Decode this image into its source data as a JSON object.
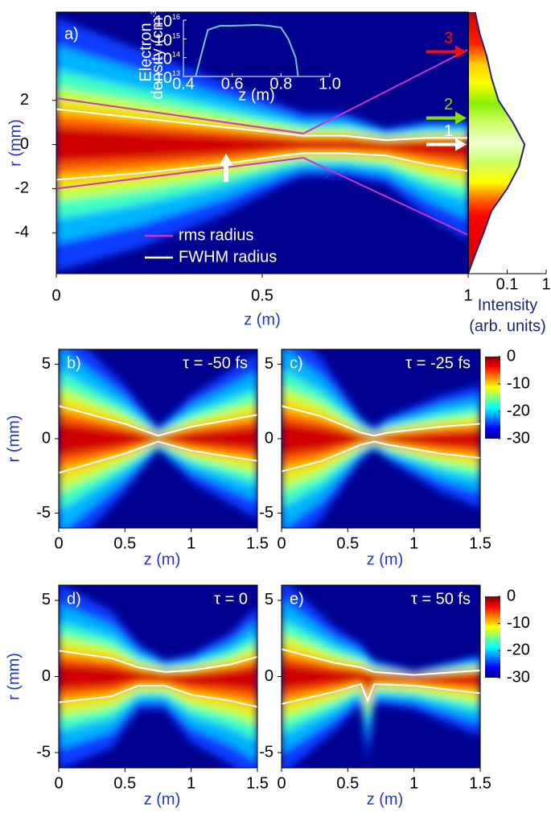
{
  "chart_data": [
    {
      "type": "heatmap",
      "panel_label": "a)",
      "xlabel": "z (m)",
      "ylabel": "r (mm)",
      "xlim": [
        0,
        1
      ],
      "ylim": [
        -5.85,
        6
      ],
      "xticks": [
        0,
        0.5,
        1
      ],
      "yticks": [
        2,
        0,
        -2,
        -4
      ],
      "series": [
        {
          "name": "rms radius",
          "color": "#cc33cc",
          "x": [
            0,
            0.6,
            1
          ],
          "values": [
            2.1,
            0.5,
            4.3
          ],
          "values_lower": [
            -2,
            -0.6,
            -4.1
          ]
        },
        {
          "name": "FWHM radius",
          "color": "#ffffff",
          "x": [
            0,
            0.2,
            0.4,
            0.55,
            0.6,
            0.7,
            0.8,
            0.9,
            1
          ],
          "values": [
            1.6,
            1.2,
            0.8,
            0.5,
            0.4,
            0.4,
            0.2,
            0.3,
            0.3
          ],
          "values_lower": [
            -1.6,
            -1.3,
            -0.9,
            -0.5,
            -0.4,
            -0.4,
            -0.5,
            -0.9,
            -1.2
          ]
        }
      ],
      "annotations": [
        {
          "text": "1",
          "color": "#ffffff",
          "r": 0
        },
        {
          "text": "2",
          "color": "#88dd00",
          "r": 1.2
        },
        {
          "text": "3",
          "color": "#ee1111",
          "r": 4.2
        }
      ]
    },
    {
      "type": "line",
      "ylog": true,
      "xlabel": "z (m)",
      "ylabel_lines": [
        "Electron",
        "density (cm"
      ],
      "ylabel_exponent": "-3",
      "ylabel_suffix": ")",
      "xlim": [
        0.4,
        1.0
      ],
      "xticks": [
        0.4,
        0.6,
        0.8,
        {
          "value": 1,
          "label": "1.0"
        }
      ],
      "ylim": [
        10000000000000.0,
        1e+16
      ],
      "yticks": [
        {
          "value": 1e+16,
          "label": "10",
          "exponent": "16"
        },
        {
          "value": 1000000000000000.0,
          "label": "10",
          "exponent": "15"
        },
        {
          "value": 100000000000000.0,
          "label": "10",
          "exponent": "14"
        },
        {
          "value": 10000000000000.0,
          "label": "10",
          "exponent": "13"
        }
      ],
      "color": "#66ccdd",
      "x": [
        0.45,
        0.47,
        0.5,
        0.55,
        0.6,
        0.7,
        0.75,
        0.8,
        0.83,
        0.86,
        0.87
      ],
      "values": [
        10000000000000.0,
        100000000000000.0,
        3000000000000000.0,
        5000000000000000.0,
        5000000000000000.0,
        5500000000000000.0,
        5000000000000000.0,
        4000000000000000.0,
        1000000000000000.0,
        100000000000000.0,
        10000000000000.0
      ]
    },
    {
      "type": "profile",
      "xlog": true,
      "xlim": [
        0.01,
        1
      ],
      "xticks": [
        0.1,
        1
      ],
      "xlabel_lines": [
        "Intensity",
        "(arb. units)"
      ],
      "color": "#1a237e",
      "r": [
        6,
        5,
        4,
        3,
        2,
        1,
        0,
        -1,
        -2,
        -3,
        -4,
        -5,
        -5.85
      ],
      "values": [
        0.015,
        0.02,
        0.03,
        0.04,
        0.06,
        0.14,
        0.28,
        0.2,
        0.1,
        0.04,
        0.025,
        0.015,
        0.01
      ]
    },
    {
      "type": "heatmap",
      "panel_label": "b)",
      "title": "τ = -50 fs",
      "xlabel": "z (m)",
      "ylabel": "r (mm)",
      "xlim": [
        0,
        1.5
      ],
      "ylim": [
        -6,
        6
      ],
      "xticks": [
        0,
        0.5,
        1,
        1.5
      ],
      "yticks": [
        5,
        0,
        -5
      ],
      "series": [
        {
          "color": "#ffffff",
          "x": [
            0,
            0.5,
            0.75,
            1,
            1.5
          ],
          "values": [
            2.2,
            1,
            0.2,
            0.8,
            1.6
          ],
          "values_lower": [
            -2.3,
            -1,
            -0.2,
            -0.8,
            -1.5
          ]
        }
      ]
    },
    {
      "type": "heatmap",
      "panel_label": "c)",
      "title": "τ = -25 fs",
      "xlabel": "z (m)",
      "xlim": [
        0,
        1.5
      ],
      "ylim": [
        -6,
        6
      ],
      "xticks": [
        0,
        0.5,
        1,
        1.5
      ],
      "yticks": [
        5,
        0,
        -5
      ],
      "series": [
        {
          "color": "#ffffff",
          "x": [
            0,
            0.3,
            0.6,
            0.7,
            0.8,
            1.2,
            1.5
          ],
          "values": [
            2.2,
            1.5,
            0.4,
            0.2,
            0.4,
            0.8,
            1
          ],
          "values_lower": [
            -2.2,
            -1.5,
            -0.4,
            -0.2,
            -0.4,
            -1,
            -1.3
          ]
        }
      ]
    },
    {
      "type": "colorbar",
      "ylim": [
        -30,
        0
      ],
      "yticks": [
        0,
        -10,
        -20,
        -30
      ]
    },
    {
      "type": "heatmap",
      "panel_label": "d)",
      "title": "τ = 0",
      "xlabel": "z (m)",
      "ylabel": "r (mm)",
      "xlim": [
        0,
        1.5
      ],
      "ylim": [
        -6,
        6
      ],
      "xticks": [
        0,
        0.5,
        1,
        1.5
      ],
      "yticks": [
        5,
        0,
        -5
      ],
      "series": [
        {
          "color": "#ffffff",
          "x": [
            0,
            0.4,
            0.6,
            0.8,
            1,
            1.3,
            1.5
          ],
          "values": [
            1.7,
            1.2,
            0.6,
            0.3,
            0.4,
            0.8,
            1.3
          ],
          "values_lower": [
            -1.7,
            -1.3,
            -0.6,
            -0.6,
            -1.2,
            -1.6,
            -2
          ]
        }
      ]
    },
    {
      "type": "heatmap",
      "panel_label": "e)",
      "title": "τ = 50 fs",
      "xlabel": "z (m)",
      "xlim": [
        0,
        1.5
      ],
      "ylim": [
        -6,
        6
      ],
      "xticks": [
        0,
        0.5,
        1,
        1.5
      ],
      "yticks": [
        5,
        0,
        -5
      ],
      "series": [
        {
          "color": "#ffffff",
          "x": [
            0,
            0.4,
            0.6,
            0.65,
            0.7,
            1,
            1.5
          ],
          "values": [
            1.8,
            0.9,
            0.6,
            0.45,
            0.3,
            0.1,
            0.4
          ],
          "values_lower": [
            -1.8,
            -1,
            -0.5,
            -1.6,
            -0.5,
            -0.6,
            -1.1
          ]
        }
      ]
    },
    {
      "type": "colorbar",
      "ylim": [
        -30,
        0
      ],
      "yticks": [
        0,
        -10,
        -20,
        -30
      ]
    }
  ]
}
